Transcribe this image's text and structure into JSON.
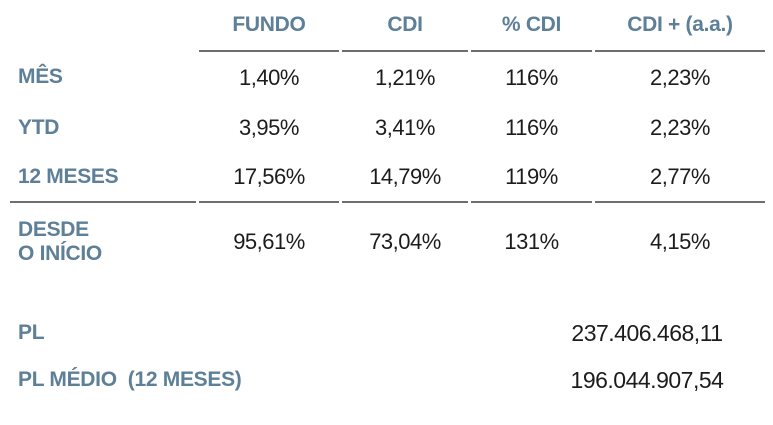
{
  "table": {
    "columns": [
      "FUNDO",
      "CDI",
      "% CDI",
      "CDI + (a.a.)"
    ],
    "rows": [
      {
        "label": "MÊS",
        "values": [
          "1,40%",
          "1,21%",
          "116%",
          "2,23%"
        ]
      },
      {
        "label": "YTD",
        "values": [
          "3,95%",
          "3,41%",
          "116%",
          "2,23%"
        ]
      },
      {
        "label": "12 MESES",
        "values": [
          "17,56%",
          "14,79%",
          "119%",
          "2,77%"
        ]
      },
      {
        "label": "DESDE\nO INÍCIO",
        "values": [
          "95,61%",
          "73,04%",
          "131%",
          "4,15%"
        ]
      }
    ]
  },
  "summary": {
    "rows": [
      {
        "label": "PL",
        "value": "237.406.468,11"
      },
      {
        "label": "PL MÉDIO  (12 MESES)",
        "value": "196.044.907,54"
      }
    ]
  },
  "colors": {
    "accent": "#5d7f98",
    "value_text": "#1c1c1c",
    "rule_line": "#6e6e6e",
    "background": "#ffffff"
  }
}
